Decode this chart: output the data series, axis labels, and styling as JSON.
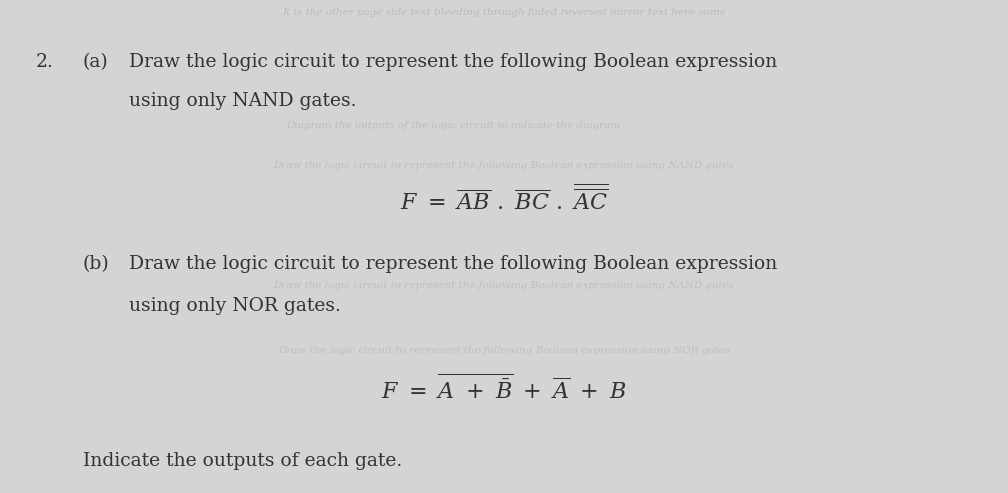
{
  "bg_color": "#d4d4d4",
  "text_color": "#333333",
  "faded_color": "#aaaaaa",
  "title_number": "2.",
  "part_a_label": "(a)",
  "part_a_line1": "Draw the logic circuit to represent the following Boolean expression",
  "part_a_line2": "using only NAND gates.",
  "part_b_label": "(b)",
  "part_b_line1": "Draw the logic circuit to represent the following Boolean expression",
  "part_b_line2": "using only NOR gates.",
  "footer": "Indicate the outputs of each gate.",
  "faded_top": "It is the other page side text bleeding through faded reversed mirror text here some",
  "faded_mid1": "Diagram the outputs of the logic circuit to indicate the diagram",
  "faded_mid2": "Draw the logic circuit to represent the following Boolean expression using NAND gates",
  "faded_mid3": "Draw the logic circuit to represent the following Boolean expression using NOR gates"
}
